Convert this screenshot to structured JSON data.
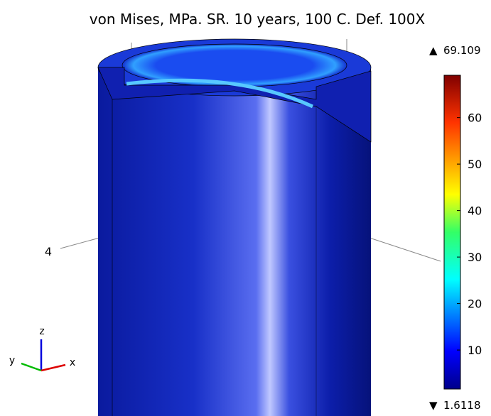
{
  "title": "von Mises, MPa. SR. 10 years, 100 C. Def. 100X",
  "axis_label": "4",
  "triad": {
    "x": "x",
    "y": "y",
    "z": "z"
  },
  "colorbar": {
    "max": 69.109,
    "min": 1.6118,
    "ticks": [
      10,
      20,
      30,
      40,
      50,
      60
    ]
  }
}
